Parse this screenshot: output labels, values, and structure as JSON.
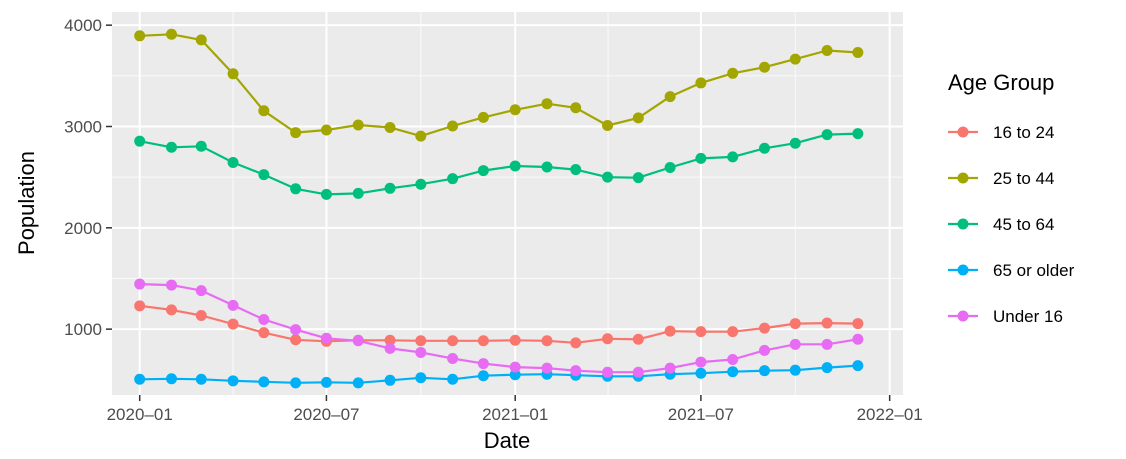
{
  "chart_data": {
    "type": "line",
    "title": "",
    "xlabel": "Date",
    "ylabel": "Population",
    "legend_title": "Age Group",
    "legend_position": "right",
    "grid": true,
    "ylim": [
      350,
      4130
    ],
    "xlim": [
      "2019-12-05",
      "2022-01-14"
    ],
    "y_ticks": [
      1000,
      2000,
      3000,
      4000
    ],
    "y_tick_labels": [
      "1000",
      "2000",
      "3000",
      "4000"
    ],
    "x_ticks": [
      "2020-01-01",
      "2020-07-01",
      "2021-01-01",
      "2021-07-01",
      "2022-01-01"
    ],
    "x_tick_labels": [
      "2020–01",
      "2020–07",
      "2021–01",
      "2021–07",
      "2022–01"
    ],
    "x": [
      "2020-01-01",
      "2020-02-01",
      "2020-03-01",
      "2020-04-01",
      "2020-05-01",
      "2020-06-01",
      "2020-07-01",
      "2020-08-01",
      "2020-09-01",
      "2020-10-01",
      "2020-11-01",
      "2020-12-01",
      "2021-01-01",
      "2021-02-01",
      "2021-03-01",
      "2021-04-01",
      "2021-05-01",
      "2021-06-01",
      "2021-07-01",
      "2021-08-01",
      "2021-09-01",
      "2021-10-01",
      "2021-11-01",
      "2021-12-01"
    ],
    "series": [
      {
        "name": "16 to 24",
        "color": "#F8766D",
        "values": [
          1230,
          1190,
          1135,
          1050,
          965,
          895,
          880,
          890,
          890,
          885,
          885,
          885,
          890,
          885,
          865,
          905,
          900,
          980,
          975,
          975,
          1010,
          1055,
          1060,
          1055
        ]
      },
      {
        "name": "25 to 44",
        "color": "#A3A500",
        "values": [
          3895,
          3910,
          3855,
          3520,
          3155,
          2940,
          2965,
          3015,
          2990,
          2905,
          3005,
          3090,
          3165,
          3225,
          3185,
          3010,
          3085,
          3295,
          3430,
          3525,
          3585,
          3665,
          3750,
          3730
        ]
      },
      {
        "name": "45 to 64",
        "color": "#00BF7D",
        "values": [
          2855,
          2795,
          2805,
          2645,
          2525,
          2385,
          2330,
          2340,
          2390,
          2430,
          2485,
          2565,
          2610,
          2600,
          2575,
          2500,
          2495,
          2595,
          2685,
          2700,
          2785,
          2835,
          2920,
          2930
        ]
      },
      {
        "name": "65 or older",
        "color": "#00B0F6",
        "values": [
          505,
          510,
          505,
          490,
          480,
          470,
          475,
          470,
          495,
          520,
          505,
          540,
          550,
          555,
          545,
          535,
          535,
          555,
          565,
          580,
          590,
          595,
          620,
          640
        ]
      },
      {
        "name": "Under 16",
        "color": "#E76BF3",
        "values": [
          1445,
          1435,
          1380,
          1235,
          1095,
          995,
          910,
          885,
          810,
          770,
          710,
          660,
          625,
          615,
          590,
          575,
          575,
          615,
          675,
          700,
          790,
          850,
          850,
          900
        ]
      }
    ]
  }
}
